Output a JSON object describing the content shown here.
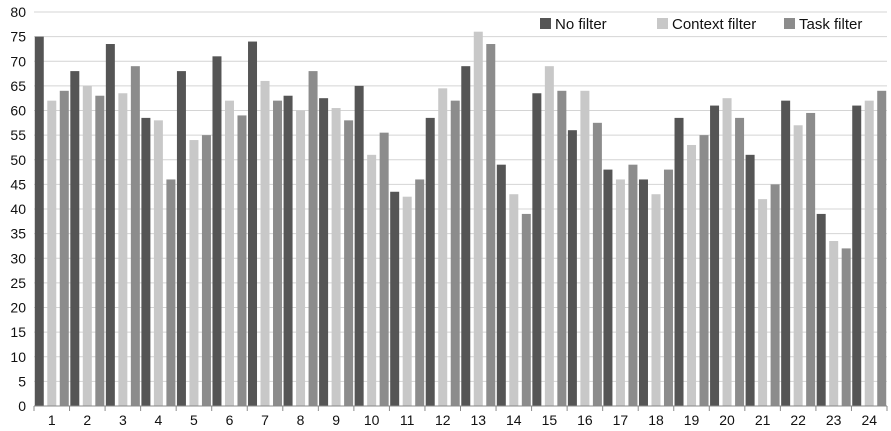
{
  "chart_data": {
    "type": "bar",
    "categories": [
      "1",
      "2",
      "3",
      "4",
      "5",
      "6",
      "7",
      "8",
      "9",
      "10",
      "11",
      "12",
      "13",
      "14",
      "15",
      "16",
      "17",
      "18",
      "19",
      "20",
      "21",
      "22",
      "23",
      "24"
    ],
    "series": [
      {
        "name": "No filter",
        "color": "#555555",
        "values": [
          75,
          68,
          73.5,
          58.5,
          68,
          71,
          74,
          63,
          62.5,
          65,
          43.5,
          58.5,
          69,
          49,
          63.5,
          56,
          48,
          46,
          58.5,
          61,
          51,
          62,
          39,
          61
        ]
      },
      {
        "name": "Context filter",
        "color": "#c8c8c8",
        "values": [
          62,
          65,
          63.5,
          58,
          54,
          62,
          66,
          60,
          60.5,
          51,
          42.5,
          64.5,
          76,
          43,
          69,
          64,
          46,
          43,
          53,
          62.5,
          42,
          57,
          33.5,
          62
        ]
      },
      {
        "name": "Task filter",
        "color": "#8c8c8c",
        "values": [
          64,
          63,
          69,
          46,
          55,
          59,
          62,
          68,
          58,
          55.5,
          46,
          62,
          73.5,
          39,
          64,
          57.5,
          49,
          48,
          55,
          58.5,
          45,
          59.5,
          32,
          64
        ]
      }
    ],
    "title": "",
    "xlabel": "",
    "ylabel": "",
    "ylim": [
      0,
      80
    ],
    "yticks": [
      0,
      5,
      10,
      15,
      20,
      25,
      30,
      35,
      40,
      45,
      50,
      55,
      60,
      65,
      70,
      75,
      80
    ],
    "grid": true,
    "legend_position": "top-right"
  }
}
